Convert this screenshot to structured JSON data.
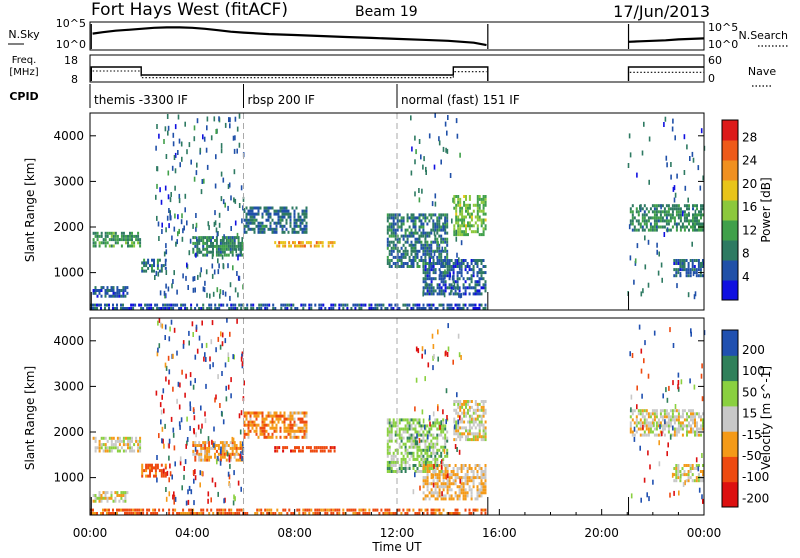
{
  "header": {
    "station": "Fort Hays West (fitACF)",
    "beam": "Beam 19",
    "date": "17/Jun/2013"
  },
  "top_panels": {
    "nsky_label": "N.Sky",
    "nsearch_label": "N.Search",
    "noise_ticks_left": [
      "10^5",
      "10^0"
    ],
    "noise_ticks_right": [
      "10^5",
      "10^0"
    ],
    "freq_label_1": "Freq.",
    "freq_label_2": "[MHz]",
    "freq_ticks": [
      "18",
      "8"
    ],
    "nave_label": "Nave",
    "nave_ticks": [
      "60",
      "0"
    ],
    "cpid_label": "CPID"
  },
  "chart_data": [
    {
      "type": "line",
      "name": "noise",
      "x_range": [
        0,
        24
      ],
      "series": [
        {
          "name": "N.Sky",
          "style": "points",
          "x": [
            0.1,
            0.5,
            1,
            1.5,
            2,
            2.5,
            3,
            3.5,
            4,
            4.5,
            5,
            5.5,
            6,
            7,
            8,
            9,
            10,
            11,
            12,
            13,
            14,
            15,
            15.5
          ],
          "y": [
            3.0,
            3.3,
            3.6,
            3.8,
            4.0,
            4.2,
            4.3,
            4.3,
            4.2,
            4.0,
            3.7,
            3.4,
            3.2,
            2.9,
            2.7,
            2.5,
            2.3,
            2.1,
            1.9,
            1.7,
            1.5,
            1.1,
            0.6
          ]
        },
        {
          "name": "N.Sky",
          "style": "points",
          "x": [
            21.05,
            21.5,
            22,
            22.5,
            23,
            23.5,
            24
          ],
          "y": [
            1.3,
            1.4,
            1.5,
            1.6,
            1.8,
            1.9,
            2.0
          ]
        }
      ]
    },
    {
      "type": "line",
      "name": "frequency",
      "x_range": [
        0,
        24
      ],
      "series": [
        {
          "name": "Freq.",
          "segments": [
            {
              "x": [
                0.05,
                0.05,
                2,
                2,
                14.2,
                14.2,
                15.55,
                15.55
              ],
              "y": [
                8,
                15,
                15,
                11,
                11,
                15,
                15,
                8
              ]
            },
            {
              "x": [
                21.05,
                21.05,
                24
              ],
              "y": [
                8,
                15,
                15
              ]
            }
          ]
        },
        {
          "name": "Nave",
          "dotted": true,
          "segments": [
            {
              "x": [
                0.1,
                2,
                2,
                14.2,
                14.2,
                15.5
              ],
              "y": [
                30,
                30,
                10,
                10,
                28,
                28
              ]
            },
            {
              "x": [
                21.1,
                24
              ],
              "y": [
                26,
                26
              ]
            }
          ]
        }
      ]
    },
    {
      "type": "table",
      "name": "cpid",
      "segments": [
        {
          "label": "themis -3300 IF",
          "x_start": 0,
          "x_end": 6
        },
        {
          "label": "rbsp 200 IF",
          "x_start": 6,
          "x_end": 12
        },
        {
          "label": "normal (fast) 151 IF",
          "x_start": 12,
          "x_end": 24
        }
      ]
    },
    {
      "type": "heatmap",
      "name": "power",
      "xlabel": "",
      "ylabel": "Slant Range [km]",
      "x_range": [
        0,
        24
      ],
      "ylim": [
        180,
        4500
      ],
      "yticks": [
        1000,
        2000,
        3000,
        4000
      ],
      "colorbar_label": "Power [dB]",
      "colorbar_ticks": [
        4,
        8,
        12,
        16,
        20,
        24,
        28
      ],
      "colorbar_range": [
        0,
        31
      ],
      "features": [
        {
          "t0": 0.1,
          "t1": 2.0,
          "r0": 1550,
          "r1": 1900,
          "v": 11
        },
        {
          "t0": 0.1,
          "t1": 1.5,
          "r0": 450,
          "r1": 700,
          "v": 6
        },
        {
          "t0": 2.0,
          "t1": 3.0,
          "r0": 1000,
          "r1": 1300,
          "v": 9
        },
        {
          "t0": 4.0,
          "t1": 6.0,
          "r0": 1350,
          "r1": 1800,
          "v": 9
        },
        {
          "t0": 6.0,
          "t1": 8.5,
          "r0": 1850,
          "r1": 2450,
          "v": 7
        },
        {
          "t0": 7.2,
          "t1": 9.6,
          "r0": 1550,
          "r1": 1700,
          "v": 21
        },
        {
          "t0": 11.6,
          "t1": 14.0,
          "r0": 1100,
          "r1": 2300,
          "v": 8
        },
        {
          "t0": 14.2,
          "t1": 15.5,
          "r0": 1800,
          "r1": 2700,
          "v": 14
        },
        {
          "t0": 13.0,
          "t1": 15.5,
          "r0": 500,
          "r1": 1300,
          "v": 6
        },
        {
          "t0": 21.1,
          "t1": 24.0,
          "r0": 1900,
          "r1": 2500,
          "v": 10
        },
        {
          "t0": 22.8,
          "t1": 24.0,
          "r0": 900,
          "r1": 1300,
          "v": 6
        },
        {
          "t0": 0.0,
          "t1": 15.5,
          "r0": 180,
          "r1": 330,
          "v": 5
        }
      ]
    },
    {
      "type": "heatmap",
      "name": "velocity",
      "xlabel": "Time UT",
      "ylabel": "Slant Range [km]",
      "x_range": [
        0,
        24
      ],
      "ylim": [
        180,
        4500
      ],
      "yticks": [
        1000,
        2000,
        3000,
        4000
      ],
      "xticks": [
        "00:00",
        "04:00",
        "08:00",
        "12:00",
        "16:00",
        "20:00",
        "00:00"
      ],
      "colorbar_label": "Velocity [m s^-1]",
      "colorbar_ticks": [
        200,
        100,
        50,
        15,
        -15,
        -50,
        -100,
        -200
      ],
      "features": [
        {
          "t0": 0.1,
          "t1": 2.0,
          "r0": 1550,
          "r1": 1900,
          "v": 0
        },
        {
          "t0": 0.1,
          "t1": 1.5,
          "r0": 450,
          "r1": 700,
          "v": 0
        },
        {
          "t0": 2.0,
          "t1": 3.0,
          "r0": 1000,
          "r1": 1300,
          "v": -60
        },
        {
          "t0": 4.0,
          "t1": 6.0,
          "r0": 1350,
          "r1": 1800,
          "v": -30
        },
        {
          "t0": 6.0,
          "t1": 8.5,
          "r0": 1850,
          "r1": 2450,
          "v": -40
        },
        {
          "t0": 7.2,
          "t1": 9.6,
          "r0": 1550,
          "r1": 1700,
          "v": -80
        },
        {
          "t0": 11.6,
          "t1": 14.0,
          "r0": 1100,
          "r1": 2300,
          "v": 30
        },
        {
          "t0": 14.2,
          "t1": 15.5,
          "r0": 1800,
          "r1": 2700,
          "v": 0
        },
        {
          "t0": 13.0,
          "t1": 15.5,
          "r0": 500,
          "r1": 1300,
          "v": -20
        },
        {
          "t0": 21.1,
          "t1": 24.0,
          "r0": 1900,
          "r1": 2500,
          "v": 0
        },
        {
          "t0": 22.8,
          "t1": 24.0,
          "r0": 900,
          "r1": 1300,
          "v": 0
        },
        {
          "t0": 0.0,
          "t1": 15.5,
          "r0": 180,
          "r1": 330,
          "v": -60
        }
      ]
    }
  ],
  "colors": {
    "power_scale": [
      "#1010e0",
      "#2050a8",
      "#2e7a62",
      "#40a04a",
      "#8cc83c",
      "#e8c41a",
      "#f09020",
      "#ee5a1a",
      "#dd1a1a"
    ],
    "velocity_scale": [
      "#dd1010",
      "#ee4a10",
      "#f49a18",
      "#c8c8c8",
      "#8ad040",
      "#30805a",
      "#2050b0"
    ],
    "mode_divider": "#aaaaaa"
  }
}
